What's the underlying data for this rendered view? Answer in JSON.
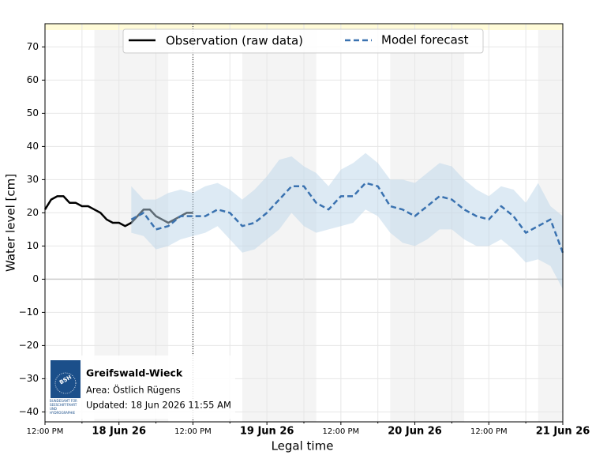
{
  "chart_data": {
    "type": "line",
    "xlabel": "Legal time",
    "ylabel": "Water level [cm]",
    "xlim": [
      0,
      84
    ],
    "ylim": [
      -43,
      77
    ],
    "xticks": [
      {
        "value": 0,
        "label": "12:00 PM"
      },
      {
        "value": 12,
        "label": "18 Jun 26"
      },
      {
        "value": 24,
        "label": "12:00 PM"
      },
      {
        "value": 36,
        "label": "19 Jun 26"
      },
      {
        "value": 48,
        "label": "12:00 PM"
      },
      {
        "value": 60,
        "label": "20 Jun 26"
      },
      {
        "value": 72,
        "label": "12:00 PM"
      },
      {
        "value": 84,
        "label": "21 Jun 26"
      }
    ],
    "x_minor_ticks": [
      6,
      18,
      30,
      42,
      54,
      66,
      78
    ],
    "yticks": [
      {
        "value": -40,
        "label": "−40"
      },
      {
        "value": -30,
        "label": "−30"
      },
      {
        "value": -20,
        "label": "−20"
      },
      {
        "value": -10,
        "label": "−10"
      },
      0,
      10,
      20,
      30,
      40,
      50,
      60,
      70
    ],
    "grid": true,
    "night_bands": [
      [
        8,
        20
      ],
      [
        32,
        44
      ],
      [
        56,
        68
      ],
      [
        80,
        84
      ]
    ],
    "now_x": 24,
    "legend_position": "upper center",
    "series": [
      {
        "name": "Observation (raw data)",
        "color": "#000000",
        "style": "solid",
        "x": [
          0,
          1,
          2,
          3,
          4,
          5,
          6,
          7,
          8,
          9,
          10,
          11,
          12,
          13,
          14,
          15,
          16,
          17,
          18,
          19,
          20,
          21,
          22,
          23,
          24
        ],
        "values": [
          21,
          24,
          25,
          25,
          23,
          23,
          22,
          22,
          21,
          20,
          18,
          17,
          17,
          16,
          17,
          19,
          21,
          21,
          19,
          18,
          17,
          18,
          19,
          20,
          20
        ]
      },
      {
        "name": "Model forecast",
        "color": "#3a72b0",
        "style": "dashed",
        "band_color": "#bcd5ea",
        "x": [
          14,
          16,
          18,
          20,
          22,
          24,
          26,
          28,
          30,
          32,
          34,
          36,
          38,
          40,
          42,
          44,
          46,
          48,
          50,
          52,
          54,
          56,
          58,
          60,
          62,
          64,
          66,
          68,
          70,
          72,
          74,
          76,
          78,
          80,
          82,
          84
        ],
        "values": [
          18,
          20,
          15,
          16,
          19,
          19,
          19,
          21,
          20,
          16,
          17,
          20,
          24,
          28,
          28,
          23,
          21,
          25,
          25,
          29,
          28,
          22,
          21,
          19,
          22,
          25,
          24,
          21,
          19,
          18,
          22,
          19,
          14,
          16,
          18,
          8
        ],
        "upper": [
          28,
          24,
          24,
          26,
          27,
          26,
          28,
          29,
          27,
          24,
          27,
          31,
          36,
          37,
          34,
          32,
          28,
          33,
          35,
          38,
          35,
          30,
          30,
          29,
          32,
          35,
          34,
          30,
          27,
          25,
          28,
          27,
          23,
          29,
          22,
          19
        ],
        "lower": [
          14,
          13,
          9,
          10,
          12,
          13,
          14,
          16,
          12,
          8,
          9,
          12,
          15,
          20,
          16,
          14,
          15,
          16,
          17,
          21,
          19,
          14,
          11,
          10,
          12,
          15,
          15,
          12,
          10,
          10,
          12,
          9,
          5,
          6,
          4,
          -3
        ]
      }
    ],
    "info": {
      "station": "Greifswald-Wieck",
      "area": "Area: Östlich Rügens",
      "updated": "Updated: 18 Jun 2026 11:55 AM",
      "logo_text": "BSH",
      "logo_caption": "BUNDESAMT FÜR SEESCHIFFFAHRT UND HYDROGRAPHIE"
    }
  }
}
